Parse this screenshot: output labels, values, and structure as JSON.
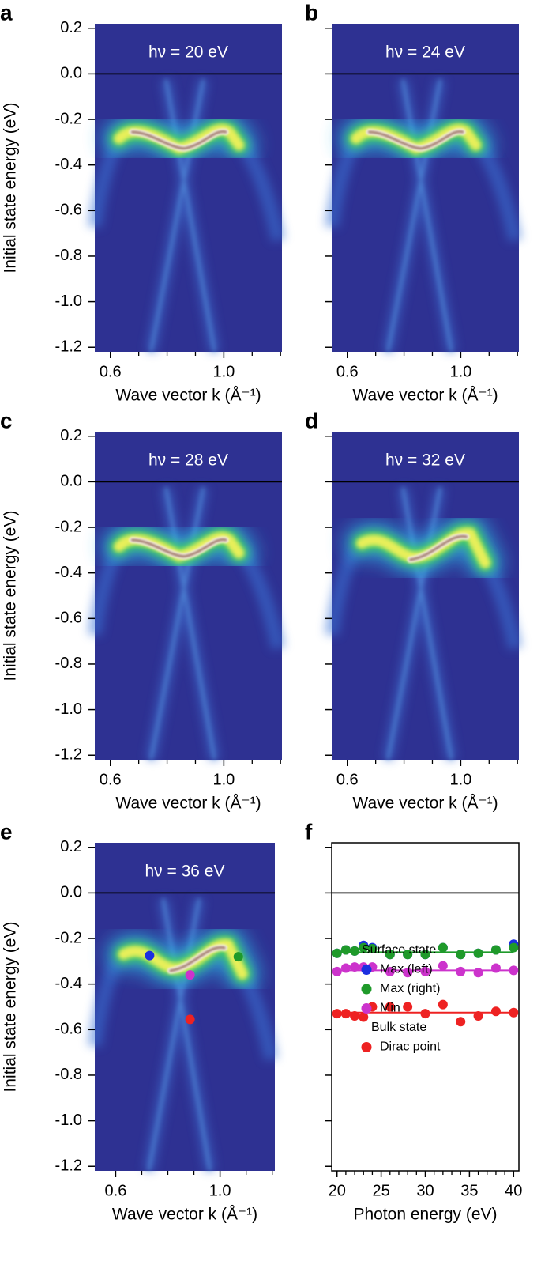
{
  "chart_data": [
    {
      "type": "image",
      "panel": "a",
      "title": "hν = 20 eV",
      "xlabel": "Wave vector k (Å⁻¹)",
      "ylabel": "Initial state energy (eV)",
      "xlim": [
        0.545,
        1.205
      ],
      "ylim": [
        -1.22,
        0.22
      ],
      "xticks": [
        0.6,
        {
          "value": 1,
          "label": "1.0"
        }
      ],
      "xminorticks": [
        0.7,
        0.8,
        0.9,
        1.1,
        1.2
      ],
      "yticks": [
        0.2,
        {
          "value": 0,
          "label": "0.0"
        },
        -0.2,
        -0.4,
        -0.6,
        -0.8,
        {
          "value": -1,
          "label": "-1.0"
        },
        -1.2
      ],
      "show_ytick_labels": true,
      "zero_line": true
    },
    {
      "type": "image",
      "panel": "b",
      "title": "hν = 24 eV",
      "xlabel": "Wave vector k (Å⁻¹)",
      "xlim": [
        0.545,
        1.205
      ],
      "ylim": [
        -1.22,
        0.22
      ],
      "xticks": [
        0.6,
        {
          "value": 1,
          "label": "1.0"
        }
      ],
      "xminorticks": [
        0.7,
        0.8,
        0.9,
        1.1,
        1.2
      ],
      "yticks": [
        0.2,
        0,
        -0.2,
        -0.4,
        -0.6,
        -0.8,
        -1,
        -1.2
      ],
      "show_ytick_labels": false,
      "zero_line": true
    },
    {
      "type": "image",
      "panel": "c",
      "title": "hν = 28 eV",
      "xlabel": "Wave vector k (Å⁻¹)",
      "ylabel": "Initial state energy (eV)",
      "xlim": [
        0.545,
        1.205
      ],
      "ylim": [
        -1.22,
        0.22
      ],
      "xticks": [
        0.6,
        {
          "value": 1,
          "label": "1.0"
        }
      ],
      "xminorticks": [
        0.7,
        0.8,
        0.9,
        1.1,
        1.2
      ],
      "yticks": [
        0.2,
        {
          "value": 0,
          "label": "0.0"
        },
        -0.2,
        -0.4,
        -0.6,
        -0.8,
        {
          "value": -1,
          "label": "-1.0"
        },
        -1.2
      ],
      "show_ytick_labels": true,
      "zero_line": true
    },
    {
      "type": "image",
      "panel": "d",
      "title": "hν = 32 eV",
      "xlabel": "Wave vector k (Å⁻¹)",
      "xlim": [
        0.545,
        1.205
      ],
      "ylim": [
        -1.22,
        0.22
      ],
      "xticks": [
        0.6,
        {
          "value": 1,
          "label": "1.0"
        }
      ],
      "xminorticks": [
        0.7,
        0.8,
        0.9,
        1.1,
        1.2
      ],
      "yticks": [
        0.2,
        0,
        -0.2,
        -0.4,
        -0.6,
        -0.8,
        -1,
        -1.2
      ],
      "show_ytick_labels": false,
      "zero_line": true
    },
    {
      "type": "image",
      "panel": "e",
      "title": "hν = 36 eV",
      "xlabel": "Wave vector k (Å⁻¹)",
      "ylabel": "Initial state energy (eV)",
      "xlim": [
        0.52,
        1.21
      ],
      "ylim": [
        -1.22,
        0.22
      ],
      "xticks": [
        0.6,
        {
          "value": 1,
          "label": "1.0"
        }
      ],
      "xminorticks": [
        0.7,
        0.8,
        0.9,
        1.1,
        1.2
      ],
      "yticks": [
        0.2,
        {
          "value": 0,
          "label": "0.0"
        },
        -0.2,
        -0.4,
        -0.6,
        -0.8,
        {
          "value": -1,
          "label": "-1.0"
        },
        -1.2
      ],
      "show_ytick_labels": true,
      "zero_line": true,
      "points": {
        "x": [
          0.73,
          1.07,
          0.885,
          0.885
        ],
        "y": [
          -0.275,
          -0.28,
          -0.36,
          -0.555
        ],
        "colors": [
          "#1c2fe0",
          "#1f9a2a",
          "#cc33cc",
          "#ee2222"
        ]
      }
    },
    {
      "type": "scatter",
      "panel": "f",
      "xlabel": "Photon energy (eV)",
      "xlim": [
        19.4,
        40.6
      ],
      "ylim": [
        -1.22,
        0.22
      ],
      "xticks": [
        20,
        25,
        30,
        35,
        40
      ],
      "xminorticks": [
        21,
        22,
        23,
        24,
        26,
        27,
        28,
        29,
        31,
        32,
        33,
        34,
        36,
        37,
        38,
        39
      ],
      "yticks": [
        0.2,
        0,
        -0.2,
        -0.4,
        -0.6,
        -0.8,
        -1,
        -1.2
      ],
      "show_ytick_labels": false,
      "zero_line": true,
      "frame": true,
      "legend": "lower center",
      "x": [
        20,
        21,
        22,
        23,
        24,
        26,
        28,
        30,
        32,
        34,
        36,
        38,
        40
      ],
      "series": [
        {
          "name": "Max (left)",
          "color": "#1c2fe0",
          "values": [
            -0.265,
            -0.25,
            -0.255,
            -0.23,
            -0.24,
            -0.27,
            -0.27,
            -0.27,
            -0.24,
            -0.27,
            -0.265,
            -0.25,
            -0.225
          ]
        },
        {
          "name": "Max (right)",
          "color": "#1f9a2a",
          "values": [
            -0.265,
            -0.25,
            -0.255,
            -0.24,
            -0.245,
            -0.27,
            -0.27,
            -0.27,
            -0.24,
            -0.27,
            -0.265,
            -0.25,
            -0.24
          ],
          "fit": [
            -0.26,
            -0.26
          ]
        },
        {
          "name": "Min",
          "color": "#cc33cc",
          "values": [
            -0.345,
            -0.33,
            -0.325,
            -0.325,
            -0.325,
            -0.345,
            -0.35,
            -0.345,
            -0.32,
            -0.345,
            -0.35,
            -0.33,
            -0.34
          ],
          "fit": [
            -0.34,
            -0.34
          ]
        },
        {
          "name": "Dirac point",
          "color": "#ee2222",
          "values": [
            -0.53,
            -0.53,
            -0.54,
            -0.545,
            -0.5,
            -0.5,
            -0.5,
            -0.53,
            -0.49,
            -0.565,
            -0.54,
            -0.52,
            -0.525
          ],
          "fit": [
            -0.525,
            -0.525
          ]
        }
      ],
      "legend_groups": [
        {
          "title": "Surface state",
          "series": [
            0,
            1,
            2
          ]
        },
        {
          "title": "Bulk state",
          "series": [
            3
          ]
        }
      ]
    }
  ]
}
